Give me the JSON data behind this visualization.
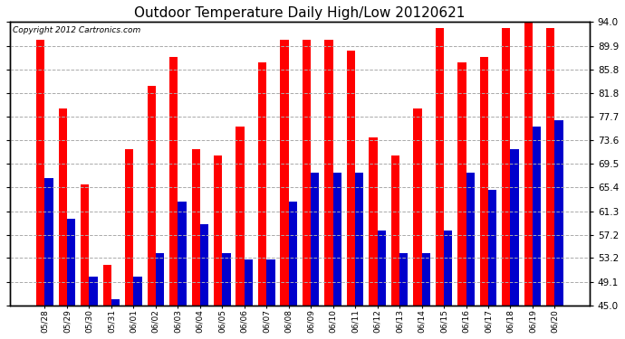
{
  "title": "Outdoor Temperature Daily High/Low 20120621",
  "copyright_text": "Copyright 2012 Cartronics.com",
  "dates": [
    "05/28",
    "05/29",
    "05/30",
    "05/31",
    "06/01",
    "06/02",
    "06/03",
    "06/04",
    "06/05",
    "06/06",
    "06/07",
    "06/08",
    "06/09",
    "06/10",
    "06/11",
    "06/12",
    "06/13",
    "06/14",
    "06/15",
    "06/16",
    "06/17",
    "06/18",
    "06/19",
    "06/20"
  ],
  "highs": [
    91.0,
    79.0,
    66.0,
    52.0,
    72.0,
    83.0,
    88.0,
    72.0,
    71.0,
    76.0,
    87.0,
    91.0,
    91.0,
    91.0,
    89.0,
    74.0,
    71.0,
    79.0,
    93.0,
    87.0,
    88.0,
    93.0,
    94.0,
    93.0
  ],
  "lows": [
    67.0,
    60.0,
    50.0,
    46.0,
    50.0,
    54.0,
    63.0,
    59.0,
    54.0,
    53.0,
    53.0,
    63.0,
    68.0,
    68.0,
    68.0,
    58.0,
    54.0,
    54.0,
    58.0,
    68.0,
    65.0,
    72.0,
    76.0,
    77.0
  ],
  "high_color": "#ff0000",
  "low_color": "#0000cc",
  "bg_color": "#ffffff",
  "plot_bg_color": "#ffffff",
  "grid_color": "#aaaaaa",
  "ylim_min": 45.0,
  "ylim_max": 94.0,
  "yticks": [
    45.0,
    49.1,
    53.2,
    57.2,
    61.3,
    65.4,
    69.5,
    73.6,
    77.7,
    81.8,
    85.8,
    89.9,
    94.0
  ],
  "title_fontsize": 11,
  "copyright_fontsize": 6.5,
  "bar_width": 0.38,
  "xlabel_fontsize": 6.5,
  "ylabel_fontsize": 7.5
}
